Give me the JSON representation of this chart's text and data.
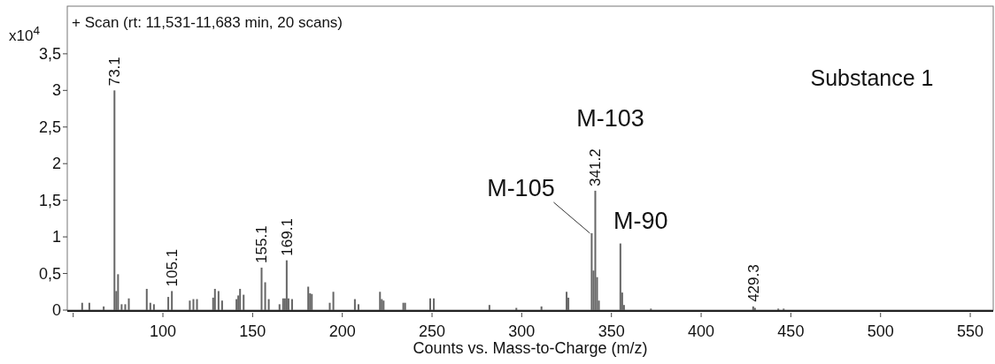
{
  "chart_data": {
    "type": "bar",
    "title": "+ Scan (rt: 11,531-11,683 min, 20 scans)",
    "xlabel": "Counts vs. Mass-to-Charge (m/z)",
    "ylabel": "x10$^{4}$",
    "xlim": [
      46.7,
      562.8
    ],
    "ylim": [
      0,
      4.15
    ],
    "xticks": [
      {
        "value": 50,
        "label": null
      },
      100,
      150,
      200,
      250,
      300,
      350,
      400,
      450,
      500,
      550
    ],
    "yticks": [
      0,
      {
        "value": 0.5,
        "label": "0,5"
      },
      1,
      {
        "value": 1.5,
        "label": "1,5"
      },
      2,
      {
        "value": 2.5,
        "label": "2,5"
      },
      3,
      {
        "value": 3.5,
        "label": "3,5"
      }
    ],
    "x": [
      55,
      59,
      67,
      73,
      74,
      75,
      77,
      79,
      81,
      91,
      93,
      95,
      103,
      105,
      115,
      117,
      119,
      128,
      129,
      131,
      133,
      141,
      142,
      143,
      145,
      155,
      157,
      159,
      165,
      167,
      168,
      169,
      170,
      172,
      181,
      182,
      183,
      193,
      195,
      207,
      209,
      221,
      222,
      223,
      234,
      235,
      249,
      251,
      282,
      297,
      311,
      325,
      326,
      339,
      340,
      341,
      342,
      343,
      355,
      356,
      357,
      372,
      429,
      430,
      443,
      446
    ],
    "series": [
      {
        "color": "#666666",
        "values": [
          0.1,
          0.1,
          0.05,
          3.0,
          0.26,
          0.49,
          0.08,
          0.08,
          0.16,
          0.29,
          0.1,
          0.08,
          0.18,
          0.26,
          0.13,
          0.15,
          0.15,
          0.17,
          0.29,
          0.26,
          0.13,
          0.15,
          0.2,
          0.29,
          0.21,
          0.58,
          0.38,
          0.15,
          0.08,
          0.16,
          0.16,
          0.68,
          0.16,
          0.15,
          0.32,
          0.23,
          0.22,
          0.1,
          0.25,
          0.15,
          0.08,
          0.25,
          0.15,
          0.13,
          0.1,
          0.1,
          0.16,
          0.16,
          0.07,
          0.03,
          0.05,
          0.25,
          0.17,
          1.05,
          0.54,
          1.63,
          0.45,
          0.13,
          0.91,
          0.24,
          0.07,
          0.02,
          0.05,
          0.03,
          0.02,
          0.02
        ]
      }
    ],
    "annotations": [
      {
        "text": "73.1",
        "x": 73,
        "y": 3.0
      },
      {
        "text": "105.1",
        "x": 105,
        "y": 0.26
      },
      {
        "text": "155.1",
        "x": 155,
        "y": 0.58
      },
      {
        "text": "169.1",
        "x": 169,
        "y": 0.68
      },
      {
        "text": "341.2",
        "x": 341,
        "y": 1.63
      },
      {
        "text": "429.3",
        "x": 429,
        "y": 0.05
      },
      {
        "text": "M-105",
        "x": 339,
        "y": 1.05
      },
      {
        "text": "M-103",
        "x": 341,
        "y": 1.63
      },
      {
        "text": "M-90",
        "x": 355,
        "y": 0.91
      },
      "Substance 1"
    ]
  }
}
